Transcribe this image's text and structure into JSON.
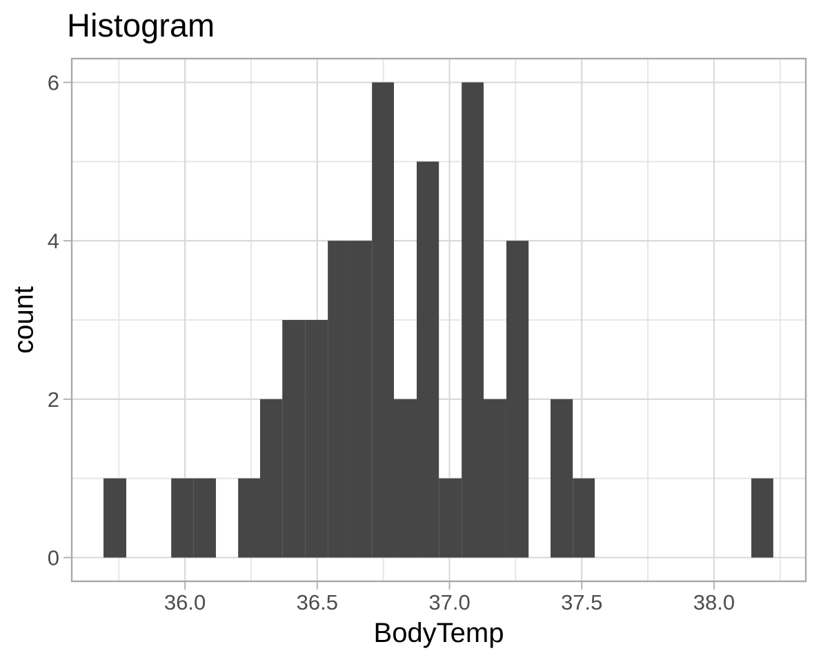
{
  "title": "Histogram",
  "chart_data": {
    "type": "histogram",
    "title": "Histogram",
    "xlabel": "BodyTemp",
    "ylabel": "count",
    "legend": false,
    "grid": true,
    "xlim": [
      35.572,
      38.347
    ],
    "ylim": [
      -0.3,
      6.3
    ],
    "x_ticks": [
      36.0,
      36.5,
      37.0,
      37.5,
      38.0
    ],
    "x_tick_labels": [
      "36.0",
      "36.5",
      "37.0",
      "37.5",
      "38.0"
    ],
    "x_minor_ticks": [
      35.75,
      36.25,
      36.75,
      37.25,
      37.75,
      38.25
    ],
    "y_ticks": [
      0,
      2,
      4,
      6
    ],
    "y_tick_labels": [
      "0",
      "2",
      "4",
      "6"
    ],
    "y_minor_ticks": [
      1,
      3,
      5
    ],
    "binwidth": 0.086,
    "bins": [
      {
        "x0": 35.692,
        "x1": 35.778,
        "count": 1
      },
      {
        "x0": 35.778,
        "x1": 35.863,
        "count": 0
      },
      {
        "x0": 35.863,
        "x1": 35.948,
        "count": 0
      },
      {
        "x0": 35.948,
        "x1": 36.033,
        "count": 1
      },
      {
        "x0": 36.033,
        "x1": 36.117,
        "count": 1
      },
      {
        "x0": 36.117,
        "x1": 36.201,
        "count": 0
      },
      {
        "x0": 36.201,
        "x1": 36.284,
        "count": 1
      },
      {
        "x0": 36.284,
        "x1": 36.368,
        "count": 2
      },
      {
        "x0": 36.368,
        "x1": 36.454,
        "count": 3
      },
      {
        "x0": 36.454,
        "x1": 36.54,
        "count": 3
      },
      {
        "x0": 36.54,
        "x1": 36.623,
        "count": 4
      },
      {
        "x0": 36.623,
        "x1": 36.707,
        "count": 4
      },
      {
        "x0": 36.707,
        "x1": 36.79,
        "count": 6
      },
      {
        "x0": 36.79,
        "x1": 36.876,
        "count": 2
      },
      {
        "x0": 36.876,
        "x1": 36.96,
        "count": 5
      },
      {
        "x0": 36.96,
        "x1": 37.046,
        "count": 1
      },
      {
        "x0": 37.046,
        "x1": 37.129,
        "count": 6
      },
      {
        "x0": 37.129,
        "x1": 37.215,
        "count": 2
      },
      {
        "x0": 37.215,
        "x1": 37.299,
        "count": 4
      },
      {
        "x0": 37.299,
        "x1": 37.382,
        "count": 0
      },
      {
        "x0": 37.382,
        "x1": 37.466,
        "count": 2
      },
      {
        "x0": 37.466,
        "x1": 37.549,
        "count": 1
      },
      {
        "x0": 37.549,
        "x1": 38.141,
        "count": 0
      },
      {
        "x0": 38.141,
        "x1": 38.224,
        "count": 1
      }
    ],
    "colors": {
      "bar_fill": "#464646",
      "grid_major": "#d9d9d9",
      "grid_minor": "#e4e4e4",
      "panel_border": "#a8a8a8",
      "tick_mark": "#b3b3b3",
      "tick_label": "#4d4d4d",
      "axis_title": "#000000",
      "plot_title": "#000000",
      "background": "#ffffff"
    }
  }
}
